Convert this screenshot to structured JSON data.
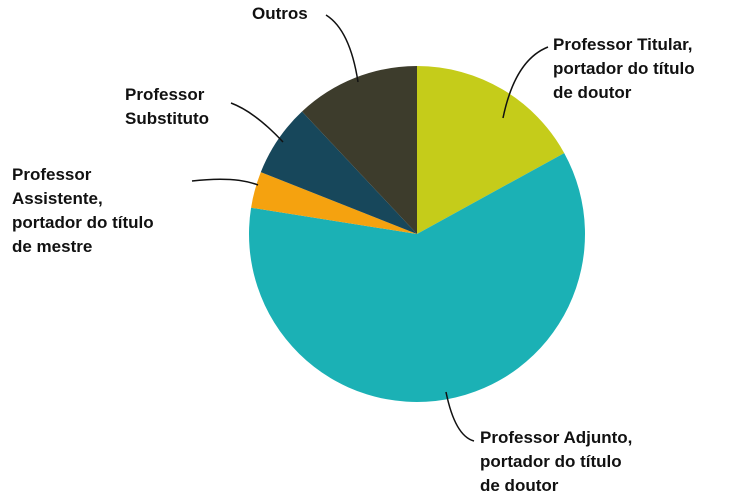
{
  "chart_data": {
    "type": "pie",
    "categories": [
      [
        "Professor Titular,",
        "portador do título",
        "de doutor"
      ],
      [
        "Professor Adjunto,",
        "portador do título",
        "de doutor"
      ],
      [
        "Professor",
        "Assistente,",
        "portador do título",
        "de mestre"
      ],
      [
        "Professor",
        "Substituto"
      ],
      [
        "Outros"
      ]
    ],
    "values": [
      17,
      60.5,
      3.5,
      7,
      12
    ],
    "colors": [
      "#c5cc1a",
      "#1bb1b5",
      "#f5a20f",
      "#17475b",
      "#3d3c2c"
    ],
    "start_angle": 0,
    "direction": "clockwise"
  }
}
